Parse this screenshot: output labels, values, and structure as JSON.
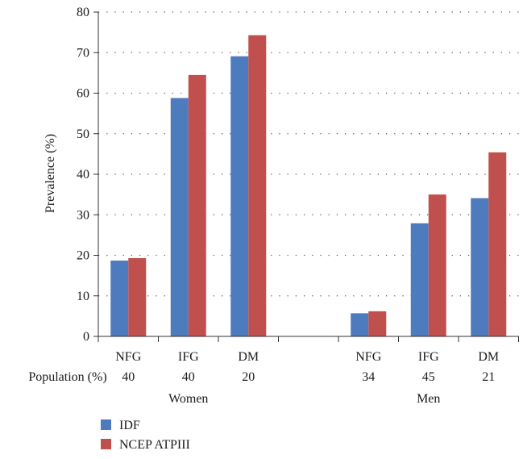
{
  "chart_data": {
    "type": "bar",
    "ylabel": "Prevalence (%)",
    "ylim": [
      0,
      80
    ],
    "yticks": [
      0,
      10,
      20,
      30,
      40,
      50,
      60,
      70,
      80
    ],
    "grid": "horizontal-dotted",
    "row_label": "Population (%)",
    "groups": [
      {
        "name": "Women",
        "categories": [
          "NFG",
          "IFG",
          "DM"
        ],
        "population": [
          "40",
          "40",
          "20"
        ]
      },
      {
        "name": "Men",
        "categories": [
          "NFG",
          "IFG",
          "DM"
        ],
        "population": [
          "34",
          "45",
          "21"
        ]
      }
    ],
    "series": [
      {
        "name": "IDF",
        "color": "#4e7bbd",
        "values": [
          18.7,
          58.8,
          69.1,
          5.7,
          27.9,
          34.1
        ]
      },
      {
        "name": "NCEP ATPIII",
        "color": "#c0504d",
        "values": [
          19.3,
          64.5,
          74.3,
          6.2,
          35.0,
          45.4
        ]
      }
    ],
    "legend_position": "bottom-left"
  }
}
